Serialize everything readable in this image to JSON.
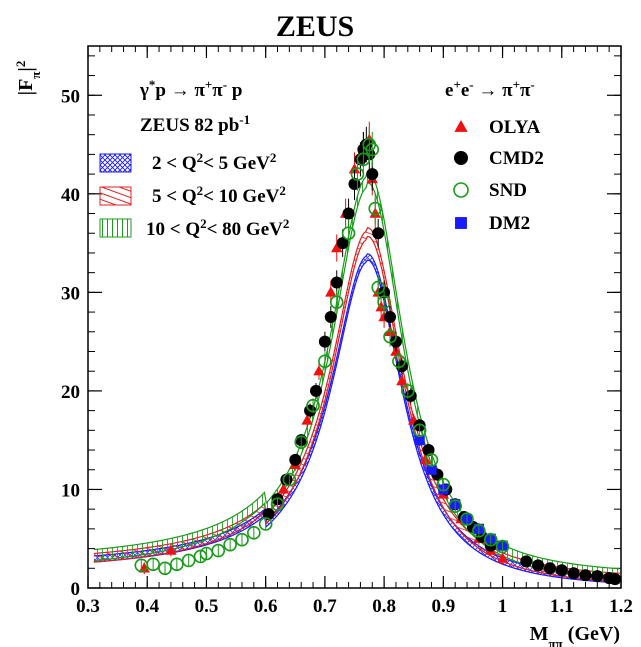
{
  "chart_data": {
    "type": "scatter",
    "title": "ZEUS",
    "xlabel": "M_ππ (GeV)",
    "ylabel": "|F_π|²",
    "xlim": [
      0.3,
      1.2
    ],
    "ylim": [
      0,
      55
    ],
    "xticks": [
      "0.3",
      "0.4",
      "0.5",
      "0.6",
      "0.7",
      "0.8",
      "0.9",
      "1",
      "1.1",
      "1.2"
    ],
    "yticks": [
      "0",
      "10",
      "20",
      "30",
      "40",
      "50"
    ],
    "annotations": {
      "reaction_zeus": "γ*p → π⁺π⁻ p",
      "zeus_lumi": "ZEUS 82 pb⁻¹",
      "reaction_ee": "e⁺e⁻ → π⁺π⁻"
    },
    "bands": [
      {
        "name": "2 < Q² < 5 GeV²",
        "color": "#1a1aff",
        "peak": 33.4,
        "tail_at_1_2": 1.0
      },
      {
        "name": "5 < Q² < 10 GeV²",
        "color": "#e02020",
        "peak": 35.8,
        "tail_at_1_2": 1.6
      },
      {
        "name": "10 < Q² < 80 GeV²",
        "color": "#1a9a1a",
        "peak": 41.2,
        "tail_at_1_2": 2.3
      }
    ],
    "series": [
      {
        "name": "OLYA",
        "marker": "triangle",
        "color": "#ee1111",
        "points": [
          [
            0.395,
            2.0
          ],
          [
            0.44,
            3.8
          ],
          [
            0.63,
            10.0
          ],
          [
            0.65,
            12.5
          ],
          [
            0.67,
            17.0
          ],
          [
            0.69,
            22.0
          ],
          [
            0.71,
            30.0
          ],
          [
            0.72,
            34.5
          ],
          [
            0.735,
            38.0
          ],
          [
            0.75,
            42.5
          ],
          [
            0.765,
            44.5
          ],
          [
            0.775,
            45.5
          ],
          [
            0.78,
            41.5
          ],
          [
            0.785,
            38.0
          ],
          [
            0.79,
            30.0
          ],
          [
            0.795,
            28.5
          ],
          [
            0.8,
            27.5
          ],
          [
            0.81,
            26.0
          ],
          [
            0.82,
            24.0
          ],
          [
            0.83,
            21.0
          ],
          [
            0.85,
            17.0
          ],
          [
            0.87,
            13.0
          ],
          [
            0.9,
            9.5
          ],
          [
            0.93,
            7.0
          ],
          [
            0.96,
            5.0
          ],
          [
            0.98,
            3.8
          ],
          [
            1.0,
            3.0
          ]
        ]
      },
      {
        "name": "CMD2",
        "marker": "circle",
        "color": "#000000",
        "points": [
          [
            0.605,
            7.5
          ],
          [
            0.62,
            9.0
          ],
          [
            0.635,
            11.0
          ],
          [
            0.65,
            13.0
          ],
          [
            0.66,
            15.0
          ],
          [
            0.675,
            18.0
          ],
          [
            0.685,
            20.0
          ],
          [
            0.7,
            25.0
          ],
          [
            0.71,
            27.5
          ],
          [
            0.72,
            31.0
          ],
          [
            0.73,
            35.0
          ],
          [
            0.74,
            38.0
          ],
          [
            0.75,
            41.0
          ],
          [
            0.76,
            43.5
          ],
          [
            0.765,
            44.5
          ],
          [
            0.77,
            45.0
          ],
          [
            0.775,
            44.0
          ],
          [
            0.78,
            42.0
          ],
          [
            0.79,
            36.0
          ],
          [
            0.8,
            30.0
          ],
          [
            0.81,
            27.5
          ],
          [
            0.82,
            25.0
          ],
          [
            0.83,
            22.5
          ],
          [
            0.845,
            19.5
          ],
          [
            0.86,
            16.5
          ],
          [
            0.875,
            14.0
          ],
          [
            0.89,
            11.5
          ],
          [
            0.905,
            10.0
          ],
          [
            0.92,
            8.5
          ],
          [
            0.935,
            7.2
          ],
          [
            0.95,
            6.2
          ],
          [
            0.965,
            5.2
          ],
          [
            0.98,
            4.3
          ],
          [
            1.04,
            2.7
          ],
          [
            1.06,
            2.3
          ],
          [
            1.08,
            2.0
          ],
          [
            1.1,
            1.8
          ],
          [
            1.12,
            1.5
          ],
          [
            1.14,
            1.3
          ],
          [
            1.16,
            1.2
          ],
          [
            1.18,
            1.0
          ],
          [
            1.19,
            0.9
          ]
        ]
      },
      {
        "name": "SND",
        "marker": "open-circle",
        "color": "#1a9a1a",
        "points": [
          [
            0.39,
            2.3
          ],
          [
            0.41,
            2.4
          ],
          [
            0.43,
            2.0
          ],
          [
            0.45,
            2.4
          ],
          [
            0.47,
            2.8
          ],
          [
            0.49,
            3.2
          ],
          [
            0.5,
            3.5
          ],
          [
            0.52,
            3.8
          ],
          [
            0.54,
            4.4
          ],
          [
            0.56,
            4.9
          ],
          [
            0.58,
            5.6
          ],
          [
            0.6,
            6.5
          ],
          [
            0.62,
            8.5
          ],
          [
            0.64,
            11.0
          ],
          [
            0.66,
            14.8
          ],
          [
            0.68,
            18.5
          ],
          [
            0.7,
            23.0
          ],
          [
            0.72,
            29.0
          ],
          [
            0.74,
            36.0
          ],
          [
            0.755,
            42.0
          ],
          [
            0.765,
            43.5
          ],
          [
            0.775,
            45.0
          ],
          [
            0.78,
            44.5
          ],
          [
            0.785,
            38.5
          ],
          [
            0.79,
            30.5
          ],
          [
            0.8,
            29.0
          ],
          [
            0.81,
            25.5
          ],
          [
            0.825,
            23.0
          ],
          [
            0.84,
            20.0
          ],
          [
            0.86,
            16.0
          ],
          [
            0.88,
            13.0
          ],
          [
            0.9,
            10.5
          ],
          [
            0.92,
            8.3
          ],
          [
            0.94,
            7.0
          ],
          [
            0.96,
            5.8
          ],
          [
            0.98,
            4.9
          ],
          [
            1.0,
            4.2
          ]
        ]
      },
      {
        "name": "DM2",
        "marker": "square",
        "color": "#1a1aff",
        "points": [
          [
            0.86,
            15.0
          ],
          [
            0.88,
            12.0
          ],
          [
            0.9,
            10.0
          ],
          [
            0.92,
            8.5
          ],
          [
            0.94,
            7.0
          ],
          [
            0.96,
            6.0
          ],
          [
            0.98,
            5.0
          ],
          [
            1.0,
            4.3
          ]
        ]
      }
    ]
  }
}
